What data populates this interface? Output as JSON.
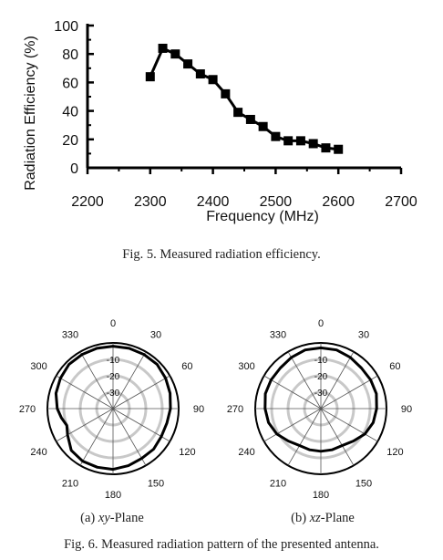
{
  "figures": [
    {
      "id": "fig5",
      "caption": "Fig. 5.   Measured radiation efficiency.",
      "chart_data": {
        "type": "line",
        "xlabel": "Frequency (MHz)",
        "ylabel": "Radiation Efficiency (%)",
        "xlim": [
          2200,
          2700
        ],
        "ylim": [
          0,
          100
        ],
        "xticks": [
          2200,
          2300,
          2400,
          2500,
          2600,
          2700
        ],
        "yticks": [
          0,
          20,
          40,
          60,
          80,
          100
        ],
        "marker": "square",
        "color": "#000000",
        "series": [
          {
            "x": [
              2300,
              2320,
              2340,
              2360,
              2380,
              2400,
              2420,
              2440,
              2460,
              2480,
              2500,
              2520,
              2540,
              2560,
              2580,
              2600
            ],
            "y": [
              64,
              84,
              80,
              73,
              66,
              62,
              52,
              39,
              34,
              29,
              22,
              19,
              19,
              17,
              14,
              13
            ]
          }
        ]
      }
    },
    {
      "id": "fig6",
      "caption": "Fig. 6.   Measured radiation pattern of the presented antenna.",
      "chart_data": [
        {
          "type": "polar",
          "subcaption_prefix": "(a) ",
          "subcaption_italic": "xy",
          "subcaption_suffix": "-Plane",
          "angle_labels": [
            "0",
            "30",
            "60",
            "90",
            "120",
            "150",
            "180",
            "210",
            "240",
            "270",
            "300",
            "330"
          ],
          "radial_labels": [
            "-10",
            "-20",
            "-30"
          ],
          "r_range_db": [
            -40,
            0
          ],
          "angles_deg": [
            0,
            15,
            30,
            45,
            60,
            75,
            90,
            105,
            120,
            135,
            150,
            165,
            180,
            195,
            210,
            225,
            240,
            250,
            260,
            270,
            285,
            300,
            315,
            330,
            345
          ],
          "gain_db": [
            -2,
            -2,
            -2,
            -2,
            -3,
            -4,
            -5,
            -6,
            -6,
            -5,
            -5,
            -4,
            -3,
            -3,
            -3,
            -4,
            -8,
            -10,
            -8,
            -6,
            -4,
            -3,
            -2,
            -2,
            -2
          ]
        },
        {
          "type": "polar",
          "subcaption_prefix": "(b) ",
          "subcaption_italic": "xz",
          "subcaption_suffix": "-Plane",
          "angle_labels": [
            "0",
            "30",
            "60",
            "90",
            "120",
            "150",
            "180",
            "210",
            "240",
            "270",
            "300",
            "330"
          ],
          "radial_labels": [
            "-10",
            "-20",
            "-30"
          ],
          "r_range_db": [
            -40,
            0
          ],
          "angles_deg": [
            0,
            15,
            30,
            45,
            60,
            75,
            90,
            105,
            120,
            135,
            150,
            165,
            180,
            195,
            210,
            225,
            240,
            255,
            270,
            285,
            300,
            315,
            330,
            345
          ],
          "gain_db": [
            -3,
            -3,
            -4,
            -5,
            -5,
            -5,
            -6,
            -7,
            -9,
            -12,
            -14,
            -14,
            -14,
            -14,
            -14,
            -12,
            -9,
            -7,
            -6,
            -5,
            -5,
            -5,
            -4,
            -3
          ]
        }
      ]
    }
  ]
}
